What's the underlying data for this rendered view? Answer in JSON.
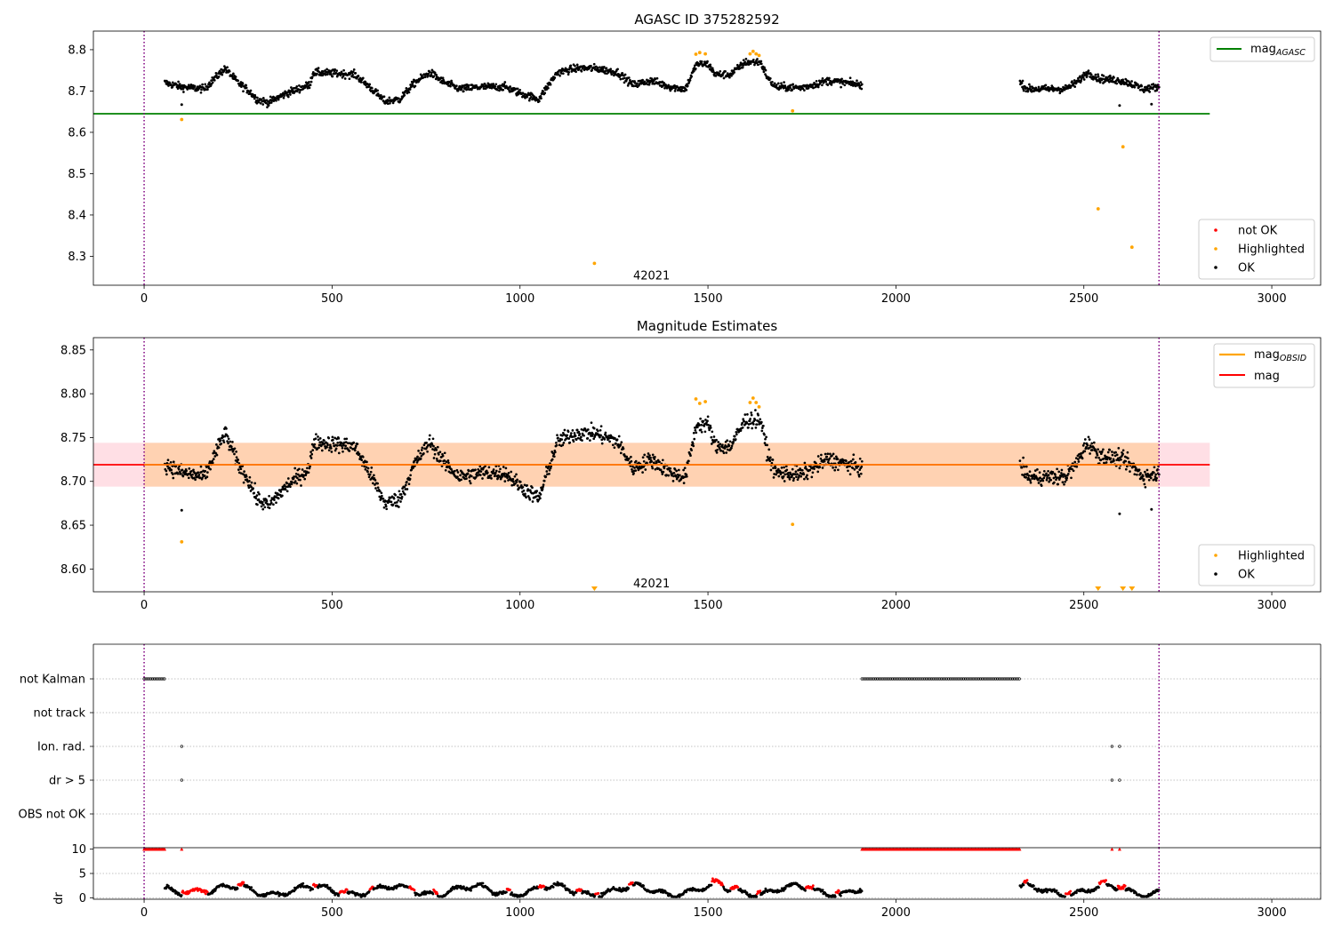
{
  "chart_data": [
    {
      "type": "scatter",
      "title": "AGASC ID 375282592",
      "xlim": [
        -135,
        3130
      ],
      "ylim": [
        8.23,
        8.845
      ],
      "xticks": [
        0,
        500,
        1000,
        1500,
        2000,
        2500,
        3000
      ],
      "yticks": [
        8.3,
        8.4,
        8.5,
        8.6,
        8.7,
        8.8
      ],
      "vlines": [
        0,
        2700
      ],
      "hline": {
        "label": "mag",
        "label_sub": "AGASC",
        "value": 8.645,
        "x_range": [
          -135,
          2835
        ]
      },
      "annotation": {
        "text": "42021",
        "x": 1350,
        "y": 8.255
      },
      "legend_top": [
        {
          "label": "mag",
          "sub": "AGASC",
          "color": "#008000"
        }
      ],
      "legend_bottom": [
        {
          "label": "not OK",
          "color": "#ff0000"
        },
        {
          "label": "Highlighted",
          "color": "#ffa500"
        },
        {
          "label": "OK",
          "color": "#000000"
        }
      ],
      "highlighted_points": [
        [
          100,
          8.631
        ],
        [
          1198,
          8.283
        ],
        [
          1725,
          8.652
        ],
        [
          2538,
          8.415
        ],
        [
          2604,
          8.565
        ],
        [
          2628,
          8.322
        ],
        [
          1468,
          8.789
        ],
        [
          1478,
          8.793
        ],
        [
          1493,
          8.79
        ],
        [
          1612,
          8.79
        ],
        [
          1620,
          8.796
        ],
        [
          1628,
          8.79
        ],
        [
          1636,
          8.786
        ]
      ],
      "ok_series": {
        "segments": [
          [
            55,
            1910
          ],
          [
            2330,
            2700
          ]
        ],
        "curve": [
          [
            55,
            8.72
          ],
          [
            100,
            8.71
          ],
          [
            160,
            8.705
          ],
          [
            215,
            8.755
          ],
          [
            250,
            8.72
          ],
          [
            280,
            8.7
          ],
          [
            300,
            8.68
          ],
          [
            330,
            8.672
          ],
          [
            380,
            8.695
          ],
          [
            440,
            8.715
          ],
          [
            450,
            8.745
          ],
          [
            520,
            8.742
          ],
          [
            560,
            8.74
          ],
          [
            600,
            8.71
          ],
          [
            640,
            8.675
          ],
          [
            680,
            8.68
          ],
          [
            720,
            8.72
          ],
          [
            760,
            8.745
          ],
          [
            800,
            8.72
          ],
          [
            840,
            8.705
          ],
          [
            900,
            8.71
          ],
          [
            960,
            8.71
          ],
          [
            1000,
            8.695
          ],
          [
            1050,
            8.68
          ],
          [
            1080,
            8.72
          ],
          [
            1100,
            8.745
          ],
          [
            1150,
            8.755
          ],
          [
            1200,
            8.755
          ],
          [
            1260,
            8.745
          ],
          [
            1300,
            8.715
          ],
          [
            1350,
            8.725
          ],
          [
            1400,
            8.71
          ],
          [
            1440,
            8.705
          ],
          [
            1470,
            8.765
          ],
          [
            1500,
            8.765
          ],
          [
            1520,
            8.74
          ],
          [
            1560,
            8.74
          ],
          [
            1600,
            8.77
          ],
          [
            1640,
            8.77
          ],
          [
            1660,
            8.73
          ],
          [
            1680,
            8.71
          ],
          [
            1750,
            8.708
          ],
          [
            1820,
            8.725
          ],
          [
            1910,
            8.715
          ],
          [
            2330,
            8.72
          ],
          [
            2350,
            8.705
          ],
          [
            2450,
            8.705
          ],
          [
            2480,
            8.72
          ],
          [
            2510,
            8.745
          ],
          [
            2540,
            8.73
          ],
          [
            2600,
            8.725
          ],
          [
            2620,
            8.72
          ],
          [
            2660,
            8.705
          ],
          [
            2700,
            8.71
          ]
        ],
        "noise": 0.009,
        "outliers": [
          [
            100,
            8.667
          ],
          [
            2595,
            8.665
          ],
          [
            2680,
            8.668
          ]
        ]
      }
    },
    {
      "type": "scatter",
      "title": "Magnitude Estimates",
      "xlim": [
        -135,
        3130
      ],
      "ylim": [
        8.574,
        8.864
      ],
      "xticks": [
        0,
        500,
        1000,
        1500,
        2000,
        2500,
        3000
      ],
      "yticks": [
        8.6,
        8.65,
        8.7,
        8.75,
        8.8,
        8.85
      ],
      "ytick_labels": [
        "8.60",
        "8.65",
        "8.70",
        "8.75",
        "8.80",
        "8.85"
      ],
      "vlines": [
        0,
        2700
      ],
      "band": {
        "low": 8.694,
        "high": 8.744,
        "x_range": [
          -135,
          2835
        ]
      },
      "hline": {
        "label": "mag",
        "value": 8.719,
        "x_range": [
          -135,
          2835
        ]
      },
      "annotation": {
        "text": "42021",
        "x": 1350,
        "y": 8.584
      },
      "legend_top": [
        {
          "label": "mag",
          "sub": "OBSID",
          "color": "#ffa500"
        },
        {
          "label": "mag",
          "color": "#ff0000"
        }
      ],
      "legend_bottom": [
        {
          "label": "Highlighted",
          "color": "#ffa500"
        },
        {
          "label": "OK",
          "color": "#000000"
        }
      ],
      "highlighted_points": [
        [
          100,
          8.631
        ],
        [
          1725,
          8.651
        ],
        [
          1468,
          8.794
        ],
        [
          1478,
          8.789
        ],
        [
          1493,
          8.791
        ],
        [
          1612,
          8.79
        ],
        [
          1620,
          8.795
        ],
        [
          1628,
          8.79
        ],
        [
          1636,
          8.785
        ]
      ],
      "offscale_markers": [
        1198,
        2538,
        2604,
        2628
      ],
      "ok_series": {
        "segments": [
          [
            55,
            1910
          ],
          [
            2330,
            2700
          ]
        ],
        "curve": [
          [
            55,
            8.72
          ],
          [
            100,
            8.71
          ],
          [
            160,
            8.705
          ],
          [
            215,
            8.755
          ],
          [
            250,
            8.72
          ],
          [
            280,
            8.7
          ],
          [
            300,
            8.68
          ],
          [
            330,
            8.672
          ],
          [
            380,
            8.695
          ],
          [
            440,
            8.715
          ],
          [
            450,
            8.745
          ],
          [
            520,
            8.742
          ],
          [
            560,
            8.74
          ],
          [
            600,
            8.71
          ],
          [
            640,
            8.675
          ],
          [
            680,
            8.68
          ],
          [
            720,
            8.72
          ],
          [
            760,
            8.745
          ],
          [
            800,
            8.72
          ],
          [
            840,
            8.705
          ],
          [
            900,
            8.71
          ],
          [
            960,
            8.71
          ],
          [
            1000,
            8.695
          ],
          [
            1050,
            8.68
          ],
          [
            1080,
            8.72
          ],
          [
            1100,
            8.745
          ],
          [
            1150,
            8.755
          ],
          [
            1200,
            8.755
          ],
          [
            1260,
            8.745
          ],
          [
            1300,
            8.715
          ],
          [
            1350,
            8.725
          ],
          [
            1400,
            8.71
          ],
          [
            1440,
            8.705
          ],
          [
            1470,
            8.765
          ],
          [
            1500,
            8.765
          ],
          [
            1520,
            8.74
          ],
          [
            1560,
            8.74
          ],
          [
            1600,
            8.77
          ],
          [
            1640,
            8.77
          ],
          [
            1660,
            8.73
          ],
          [
            1680,
            8.71
          ],
          [
            1750,
            8.708
          ],
          [
            1820,
            8.725
          ],
          [
            1910,
            8.715
          ],
          [
            2330,
            8.72
          ],
          [
            2350,
            8.705
          ],
          [
            2450,
            8.705
          ],
          [
            2480,
            8.72
          ],
          [
            2510,
            8.745
          ],
          [
            2540,
            8.73
          ],
          [
            2600,
            8.725
          ],
          [
            2620,
            8.72
          ],
          [
            2660,
            8.705
          ],
          [
            2700,
            8.71
          ]
        ],
        "noise": 0.009,
        "outliers": [
          [
            100,
            8.667
          ],
          [
            2595,
            8.663
          ],
          [
            2680,
            8.668
          ]
        ]
      }
    },
    {
      "type": "scatter",
      "title": "",
      "xlim": [
        -135,
        3130
      ],
      "vlines": [
        0,
        2700
      ],
      "flag_rows": [
        "not Kalman",
        "not track",
        "Ion. rad.",
        "dr > 5",
        "OBS not OK"
      ],
      "flags": {
        "not Kalman": [
          [
            0,
            55
          ],
          [
            1910,
            2330
          ]
        ],
        "not track": [],
        "Ion. rad.": [
          [
            100,
            100
          ],
          [
            2575,
            2575
          ],
          [
            2595,
            2595
          ]
        ],
        "dr > 5": [
          [
            100,
            100
          ],
          [
            2575,
            2575
          ],
          [
            2595,
            2595
          ]
        ],
        "OBS not OK": []
      }
    },
    {
      "type": "scatter",
      "title": "",
      "xlim": [
        -135,
        3130
      ],
      "ylim": [
        -0.3,
        10.3
      ],
      "ylabel": "dr",
      "xticks": [
        0,
        500,
        1000,
        1500,
        2000,
        2500,
        3000
      ],
      "yticks": [
        0,
        5,
        10
      ],
      "vlines": [
        0,
        2700
      ],
      "capped_value": 10,
      "capped_ranges": [
        [
          0,
          55
        ],
        [
          100,
          100
        ],
        [
          1910,
          2330
        ],
        [
          2575,
          2575
        ],
        [
          2595,
          2595
        ]
      ],
      "dr_segments": [
        [
          55,
          1910
        ],
        [
          2330,
          2700
        ]
      ],
      "red_ranges": [
        [
          100,
          170
        ],
        [
          250,
          265
        ],
        [
          450,
          460
        ],
        [
          520,
          540
        ],
        [
          600,
          610
        ],
        [
          705,
          720
        ],
        [
          770,
          780
        ],
        [
          965,
          975
        ],
        [
          1050,
          1065
        ],
        [
          1150,
          1165
        ],
        [
          1200,
          1210
        ],
        [
          1290,
          1300
        ],
        [
          1510,
          1540
        ],
        [
          1560,
          1580
        ],
        [
          1630,
          1640
        ],
        [
          1760,
          1780
        ],
        [
          1840,
          1850
        ],
        [
          2340,
          2350
        ],
        [
          2450,
          2465
        ],
        [
          2540,
          2560
        ],
        [
          2590,
          2610
        ]
      ]
    }
  ]
}
